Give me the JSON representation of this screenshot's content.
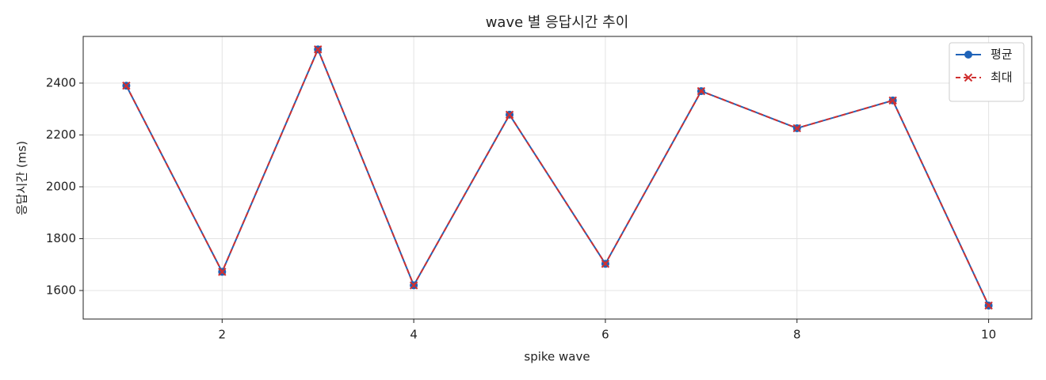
{
  "chart_data": {
    "type": "line",
    "title": "wave 별 응답시간 추이",
    "xlabel": "spike wave",
    "ylabel": "응답시간 (ms)",
    "x": [
      1,
      2,
      3,
      4,
      5,
      6,
      7,
      8,
      9,
      10
    ],
    "series": [
      {
        "name": "평균",
        "color": "#1f63b8",
        "marker": "o",
        "linestyle": "solid",
        "values": [
          2390,
          1672,
          2530,
          1620,
          2278,
          1703,
          2369,
          2226,
          2333,
          1542
        ]
      },
      {
        "name": "최대",
        "color": "#d03030",
        "marker": "x",
        "linestyle": "dashed",
        "values": [
          2390,
          1672,
          2530,
          1620,
          2278,
          1703,
          2369,
          2226,
          2333,
          1542
        ]
      }
    ],
    "xlim": [
      0.55,
      10.45
    ],
    "xticks": [
      2,
      4,
      6,
      8,
      10
    ],
    "ylim": [
      1490,
      2580
    ],
    "yticks": [
      1600,
      1800,
      2000,
      2200,
      2400
    ],
    "grid": true,
    "legend": "upper right"
  }
}
